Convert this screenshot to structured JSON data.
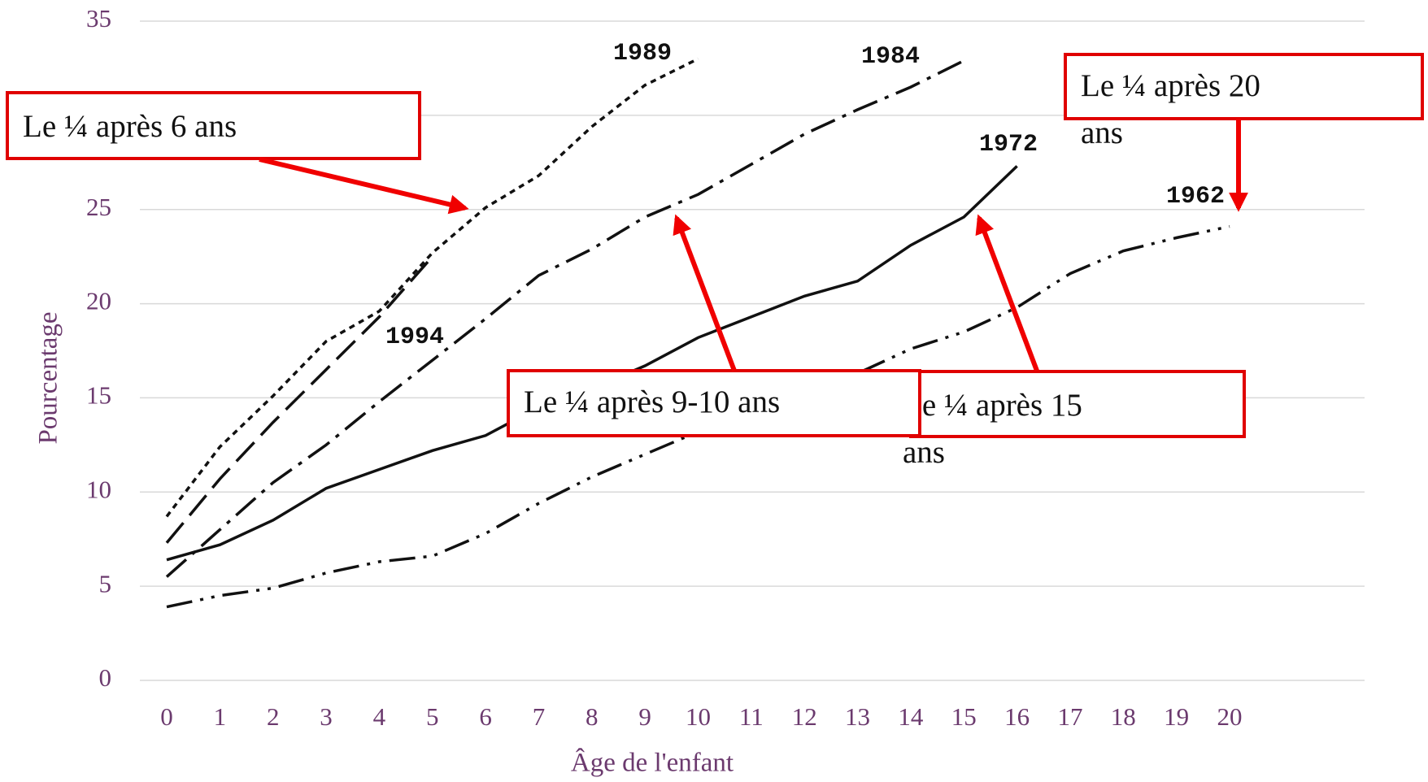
{
  "chart_data": {
    "type": "line",
    "y_label": "Pourcentage",
    "x_label": "Âge de l'enfant",
    "categories": [
      0,
      1,
      2,
      3,
      4,
      5,
      6,
      7,
      8,
      9,
      10,
      11,
      12,
      13,
      14,
      15,
      16,
      17,
      18,
      19,
      20
    ],
    "ylim": [
      0,
      35
    ],
    "yticks": [
      0,
      5,
      10,
      15,
      20,
      25,
      30,
      35
    ],
    "grid": true,
    "series": [
      {
        "name": "1989",
        "color": "#111111",
        "dash": "7,6",
        "values": [
          8.7,
          12.4,
          15.1,
          18.0,
          19.6,
          22.7,
          25.1,
          26.8,
          29.4,
          31.6,
          33.0,
          null,
          null,
          null,
          null,
          null,
          null,
          null,
          null,
          null,
          null
        ]
      },
      {
        "name": "1994",
        "color": "#111111",
        "dash": "32,12",
        "values": [
          7.3,
          10.7,
          13.7,
          16.5,
          19.3,
          22.5,
          null,
          null,
          null,
          null,
          null,
          null,
          null,
          null,
          null,
          null,
          null,
          null,
          null,
          null,
          null
        ]
      },
      {
        "name": "1984",
        "color": "#111111",
        "dash": "32,10,5,10",
        "values": [
          5.5,
          8.0,
          10.5,
          12.5,
          14.8,
          17.0,
          19.2,
          21.5,
          22.9,
          24.6,
          25.8,
          27.4,
          29.0,
          30.3,
          31.5,
          32.9,
          null,
          null,
          null,
          null,
          null
        ]
      },
      {
        "name": "1972",
        "color": "#111111",
        "dash": "none",
        "values": [
          6.4,
          7.2,
          8.5,
          10.2,
          11.2,
          12.2,
          13.0,
          14.5,
          15.5,
          16.7,
          18.2,
          19.3,
          20.4,
          21.2,
          23.1,
          24.6,
          27.3,
          null,
          null,
          null,
          null
        ]
      },
      {
        "name": "1962",
        "color": "#111111",
        "dash": "32,10,4,10,4,10",
        "values": [
          3.9,
          4.5,
          4.9,
          5.7,
          6.3,
          6.6,
          7.8,
          9.4,
          10.8,
          12.0,
          13.2,
          14.6,
          15.0,
          16.3,
          17.6,
          18.5,
          19.8,
          21.6,
          22.8,
          23.5,
          24.1
        ]
      }
    ],
    "annotations": [
      {
        "lines": [
          "Le ¼  après 6 ans"
        ]
      },
      {
        "lines": [
          "Le ¼  après 15",
          "ans"
        ]
      },
      {
        "lines": [
          "Le ¼  après 9-10 ans"
        ]
      },
      {
        "lines": [
          "Le ¼  après 20",
          "ans"
        ]
      }
    ]
  }
}
